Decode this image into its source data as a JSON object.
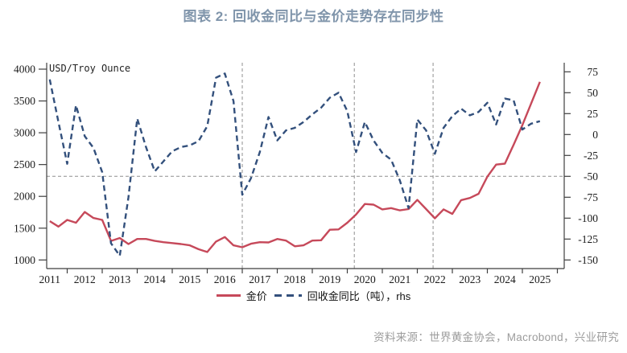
{
  "page": {
    "title": "图表 2:  回收金同比与金价走势存在同步性",
    "source": "资料来源：世界黄金协会，Macrobond，兴业研究"
  },
  "colors": {
    "title_text": "#8095ab",
    "gold_line": "#c6495a",
    "recycled_line": "#33507c",
    "grid_dash": "#8f8f8f",
    "axis": "#3f3f3f",
    "tick_text": "#1a1a1a",
    "source_text": "#9c9c9c"
  },
  "chart_data": {
    "type": "line",
    "unit_label_left": "USD/Troy Ounce",
    "x_axis": {
      "years": [
        2011,
        2012,
        2013,
        2014,
        2015,
        2016,
        2017,
        2018,
        2019,
        2020,
        2021,
        2022,
        2023,
        2024,
        2025
      ],
      "range_start": 2011.4,
      "range_end": 2026.2
    },
    "left_axis": {
      "ticks": [
        1000,
        1500,
        2000,
        2500,
        3000,
        3500,
        4000
      ],
      "range": [
        1000,
        4000
      ]
    },
    "right_axis": {
      "ticks": [
        -150,
        -125,
        -100,
        -75,
        -50,
        -25,
        0,
        25,
        50,
        75
      ],
      "range": [
        -150,
        75
      ]
    },
    "reference_hline_right_value": -50,
    "event_vlines": [
      2017.0,
      2020.2,
      2022.45
    ],
    "quarters": [
      "2011Q3",
      "2011Q4",
      "2012Q1",
      "2012Q2",
      "2012Q3",
      "2012Q4",
      "2013Q1",
      "2013Q2",
      "2013Q3",
      "2013Q4",
      "2014Q1",
      "2014Q2",
      "2014Q3",
      "2014Q4",
      "2015Q1",
      "2015Q2",
      "2015Q3",
      "2015Q4",
      "2016Q1",
      "2016Q2",
      "2016Q3",
      "2016Q4",
      "2017Q1",
      "2017Q2",
      "2017Q3",
      "2017Q4",
      "2018Q1",
      "2018Q2",
      "2018Q3",
      "2018Q4",
      "2019Q1",
      "2019Q2",
      "2019Q3",
      "2019Q4",
      "2020Q1",
      "2020Q2",
      "2020Q3",
      "2020Q4",
      "2021Q1",
      "2021Q2",
      "2021Q3",
      "2021Q4",
      "2022Q1",
      "2022Q2",
      "2022Q3",
      "2022Q4",
      "2023Q1",
      "2023Q2",
      "2023Q3",
      "2023Q4",
      "2024Q1",
      "2024Q2",
      "2024Q3",
      "2024Q4",
      "2025Q1",
      "2025Q2",
      "2025Q3"
    ],
    "series": [
      {
        "name": "金价",
        "axis": "left",
        "line_style": "solid",
        "color": "#c6495a",
        "values": [
          1610,
          1525,
          1630,
          1585,
          1755,
          1660,
          1630,
          1300,
          1345,
          1250,
          1330,
          1330,
          1300,
          1280,
          1265,
          1250,
          1230,
          1170,
          1125,
          1290,
          1360,
          1230,
          1200,
          1255,
          1280,
          1275,
          1330,
          1305,
          1215,
          1230,
          1305,
          1310,
          1475,
          1480,
          1585,
          1715,
          1880,
          1870,
          1795,
          1815,
          1780,
          1800,
          1945,
          1800,
          1655,
          1795,
          1725,
          1940,
          1975,
          2040,
          2310,
          2500,
          2515,
          2810,
          3120,
          3460,
          3800
        ]
      },
      {
        "name": "回收金同比（吨），rhs",
        "axis": "right",
        "line_style": "dashed",
        "color": "#33507c",
        "values": [
          66,
          15,
          -35,
          35,
          -2,
          -16,
          -45,
          -130,
          -145,
          -75,
          19,
          -15,
          -44,
          -32,
          -20,
          -15,
          -13,
          -8,
          10,
          68,
          73,
          40,
          -72,
          -52,
          -21,
          21,
          -7,
          5,
          8,
          15,
          24,
          32,
          44,
          50,
          28,
          -21,
          15,
          -7,
          -22,
          -30,
          -55,
          -88,
          18,
          5,
          -23,
          8,
          22,
          31,
          23,
          27,
          38,
          12,
          43,
          41,
          6,
          13,
          16
        ]
      }
    ],
    "legend_position": "bottom-center",
    "grid": "horizontal reference line at rhs -50; vertical event lines at 2017.0, 2020.2, 2022.45"
  }
}
